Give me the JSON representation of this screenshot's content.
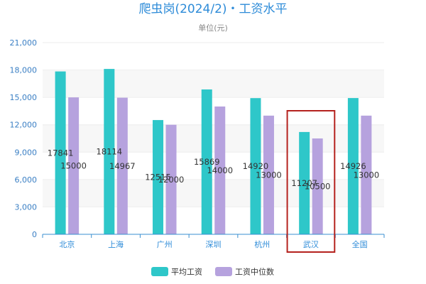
{
  "chart_data": {
    "type": "bar",
    "title": "爬虫岗(2024/2)・工资水平",
    "subtitle": "单位(元)",
    "categories": [
      "北京",
      "上海",
      "广州",
      "深圳",
      "杭州",
      "武汉",
      "全国"
    ],
    "series": [
      {
        "name": "平均工资",
        "values": [
          17841,
          18114,
          12515,
          15869,
          14920,
          11207,
          14926
        ],
        "color": "#2ec7c9"
      },
      {
        "name": "工资中位数",
        "values": [
          15000,
          14967,
          12000,
          14000,
          13000,
          10500,
          13000
        ],
        "color": "#b6a2de"
      }
    ],
    "yticks": [
      "0",
      "3,000",
      "6,000",
      "9,000",
      "12,000",
      "15,000",
      "18,000",
      "21,000"
    ],
    "ylim": [
      0,
      21000
    ],
    "grid": true,
    "legend": "bottom-center",
    "highlight_category": "武汉",
    "highlight_color": "#b5221e"
  }
}
